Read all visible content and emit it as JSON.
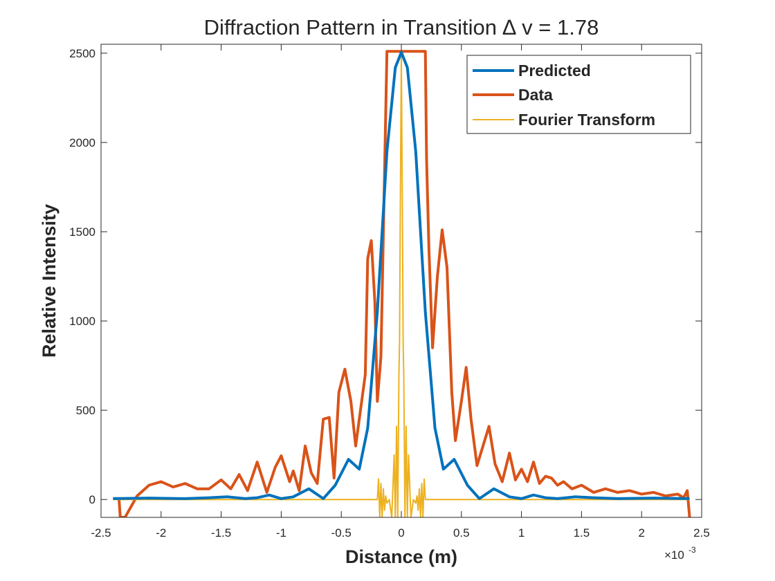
{
  "chart_data": {
    "type": "line",
    "title": "Diffraction Pattern in Transition ∆ v = 1.78",
    "xlabel": "Distance (m)",
    "ylabel": "Relative Intensity",
    "x_exponent_label": "×10",
    "x_exponent_power": "-3",
    "xlim": [
      -2.5,
      2.5
    ],
    "ylim": [
      -100,
      2550
    ],
    "x_scale_factor": 0.001,
    "x_ticks": [
      -2.5,
      -2,
      -1.5,
      -1,
      -0.5,
      0,
      0.5,
      1,
      1.5,
      2,
      2.5
    ],
    "x_tick_labels": [
      "-2.5",
      "-2",
      "-1.5",
      "-1",
      "-0.5",
      "0",
      "0.5",
      "1",
      "1.5",
      "2",
      "2.5"
    ],
    "y_ticks": [
      0,
      500,
      1000,
      1500,
      2000,
      2500
    ],
    "y_tick_labels": [
      "0",
      "500",
      "1000",
      "1500",
      "2000",
      "2500"
    ],
    "grid": false,
    "legend_position": "top-right",
    "series": [
      {
        "name": "Predicted",
        "color": "#0072BD",
        "x": [
          -2.4,
          -2.1,
          -1.8,
          -1.6,
          -1.45,
          -1.3,
          -1.2,
          -1.1,
          -1.0,
          -0.9,
          -0.77,
          -0.65,
          -0.55,
          -0.44,
          -0.35,
          -0.28,
          -0.2,
          -0.12,
          -0.05,
          0,
          0.05,
          0.12,
          0.2,
          0.28,
          0.35,
          0.44,
          0.55,
          0.65,
          0.77,
          0.9,
          1.0,
          1.1,
          1.2,
          1.3,
          1.45,
          1.6,
          1.8,
          2.1,
          2.4
        ],
        "y": [
          5,
          8,
          5,
          10,
          15,
          5,
          10,
          25,
          5,
          15,
          60,
          5,
          80,
          225,
          170,
          400,
          1050,
          1950,
          2420,
          2505,
          2420,
          1950,
          1050,
          400,
          170,
          225,
          80,
          5,
          60,
          15,
          5,
          25,
          10,
          5,
          15,
          10,
          5,
          8,
          5
        ]
      },
      {
        "name": "Data",
        "color": "#D95319",
        "x": [
          -2.4,
          -2.35,
          -2.34,
          -2.3,
          -2.2,
          -2.1,
          -2.0,
          -1.9,
          -1.8,
          -1.7,
          -1.6,
          -1.5,
          -1.42,
          -1.35,
          -1.28,
          -1.2,
          -1.12,
          -1.05,
          -1.0,
          -0.93,
          -0.9,
          -0.85,
          -0.8,
          -0.75,
          -0.7,
          -0.65,
          -0.6,
          -0.56,
          -0.52,
          -0.47,
          -0.42,
          -0.38,
          -0.3,
          -0.28,
          -0.25,
          -0.22,
          -0.2,
          -0.17,
          -0.12,
          -0.09,
          -0.06,
          -0.05,
          0.0,
          0.1,
          0.2,
          0.21,
          0.23,
          0.26,
          0.3,
          0.34,
          0.38,
          0.42,
          0.45,
          0.5,
          0.54,
          0.58,
          0.63,
          0.68,
          0.73,
          0.78,
          0.84,
          0.9,
          0.95,
          1.0,
          1.05,
          1.1,
          1.15,
          1.2,
          1.25,
          1.3,
          1.35,
          1.42,
          1.5,
          1.6,
          1.7,
          1.8,
          1.9,
          2.0,
          2.1,
          2.2,
          2.3,
          2.35,
          2.38,
          2.4
        ],
        "y": [
          5,
          5,
          -100,
          -100,
          20,
          80,
          100,
          70,
          90,
          60,
          60,
          110,
          60,
          140,
          50,
          210,
          40,
          180,
          245,
          100,
          160,
          50,
          300,
          150,
          90,
          450,
          460,
          120,
          600,
          730,
          550,
          300,
          700,
          1350,
          1450,
          1100,
          550,
          800,
          2510,
          2510,
          2510,
          2510,
          2510,
          2510,
          2510,
          1900,
          1400,
          850,
          1250,
          1510,
          1300,
          600,
          330,
          550,
          740,
          450,
          190,
          300,
          410,
          200,
          100,
          260,
          110,
          170,
          100,
          210,
          90,
          130,
          120,
          80,
          100,
          60,
          80,
          40,
          60,
          40,
          50,
          30,
          40,
          20,
          30,
          10,
          50,
          -100
        ]
      },
      {
        "name": "Fourier Transform",
        "color": "#EDB120",
        "x": [
          -2.4,
          -0.4,
          -0.35,
          -0.2,
          -0.19,
          -0.18,
          -0.17,
          -0.16,
          -0.15,
          -0.14,
          -0.13,
          -0.12,
          -0.1,
          -0.08,
          -0.06,
          -0.05,
          -0.04,
          -0.03,
          -0.02,
          -0.015,
          -0.01,
          0,
          0.01,
          0.015,
          0.02,
          0.03,
          0.04,
          0.05,
          0.06,
          0.08,
          0.1,
          0.12,
          0.13,
          0.14,
          0.15,
          0.16,
          0.17,
          0.18,
          0.19,
          0.2,
          0.35,
          0.4,
          2.4
        ],
        "y": [
          0,
          0,
          0,
          0,
          115,
          -100,
          90,
          -100,
          60,
          -60,
          20,
          -20,
          0,
          -100,
          250,
          -100,
          410,
          -100,
          700,
          880,
          1500,
          2505,
          1500,
          880,
          700,
          -100,
          410,
          -100,
          250,
          -100,
          0,
          -20,
          20,
          -60,
          60,
          -100,
          90,
          -100,
          115,
          0,
          0,
          0,
          0
        ]
      }
    ]
  }
}
